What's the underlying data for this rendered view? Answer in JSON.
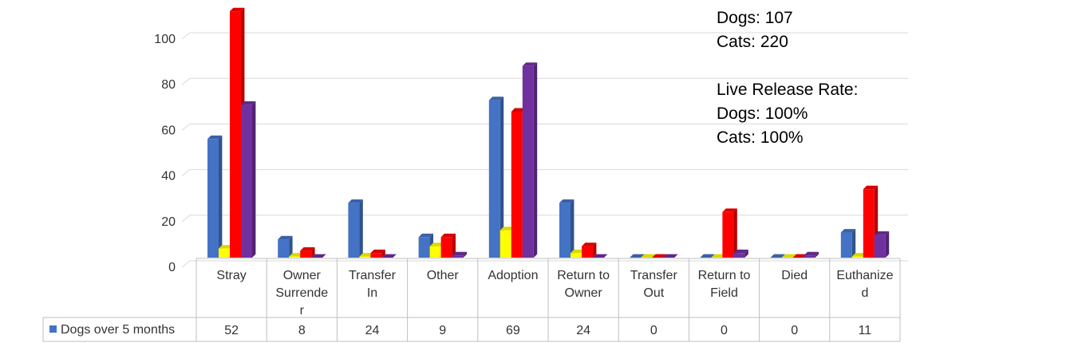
{
  "chart_data": {
    "type": "bar",
    "categories": [
      "Stray",
      "Owner Surrender",
      "Transfer In",
      "Other",
      "Adoption",
      "Return to Owner",
      "Transfer Out",
      "Return to Field",
      "Died",
      "Euthanized"
    ],
    "category_lines": [
      [
        "Stray"
      ],
      [
        "Owner",
        "Surrende",
        "r"
      ],
      [
        "Transfer",
        "In"
      ],
      [
        "Other"
      ],
      [
        "Adoption"
      ],
      [
        "Return to",
        "Owner"
      ],
      [
        "Transfer",
        "Out"
      ],
      [
        "Return to",
        "Field"
      ],
      [
        "Died"
      ],
      [
        "Euthanize",
        "d"
      ]
    ],
    "series": [
      {
        "name": "Dogs over 5 months",
        "color": "#4472C4",
        "values": [
          52,
          8,
          24,
          9,
          69,
          24,
          0,
          0,
          0,
          11
        ]
      },
      {
        "color": "#FFFF00",
        "values": [
          4,
          0.5,
          0.5,
          5,
          12,
          2,
          0,
          0,
          0,
          0.5
        ]
      },
      {
        "color": "#FF0000",
        "values": [
          108,
          3,
          2,
          9,
          64,
          5,
          0,
          20,
          0,
          30
        ]
      },
      {
        "color": "#7030A0",
        "values": [
          67,
          0,
          0,
          1,
          84,
          0,
          0,
          2,
          1,
          10
        ]
      }
    ],
    "ylim": [
      0,
      100
    ],
    "yticks": [
      0,
      20,
      40,
      60,
      80,
      100
    ],
    "grid": true,
    "table": {
      "row_label": "Dogs over 5 months",
      "values": [
        "52",
        "8",
        "24",
        "9",
        "69",
        "24",
        "0",
        "0",
        "0",
        "11"
      ]
    }
  },
  "notes": {
    "line1": "Dogs: 107",
    "line2": "Cats: 220",
    "line3": "",
    "line4": "Live Release Rate:",
    "line5": "Dogs: 100%",
    "line6": "Cats: 100%"
  }
}
